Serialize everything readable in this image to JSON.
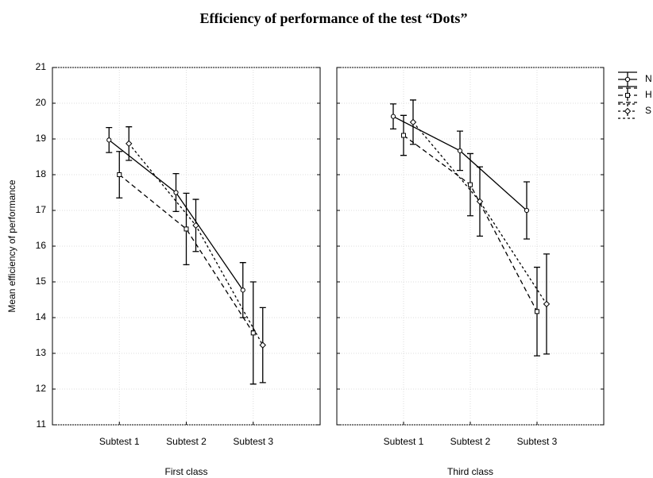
{
  "title": "Efficiency of performance of the test “Dots”",
  "legend": [
    {
      "name": "N",
      "dash": "none",
      "marker": "circle"
    },
    {
      "name": "H",
      "dash": "6,4",
      "marker": "square"
    },
    {
      "name": "S",
      "dash": "3,3",
      "marker": "diamond"
    }
  ],
  "chart_data": [
    {
      "type": "line",
      "xlabel": "First class",
      "ylabel": "Mean efficiency of performance",
      "categories": [
        "Subtest 1",
        "Subtest 2",
        "Subtest 3"
      ],
      "ylim": [
        11,
        21
      ],
      "yticks": [
        11,
        12,
        13,
        14,
        15,
        16,
        17,
        18,
        19,
        20,
        21
      ],
      "grid": true,
      "series": [
        {
          "values": [
            18.97,
            17.5,
            14.77
          ],
          "errors": [
            0.35,
            0.53,
            0.77
          ]
        },
        {
          "values": [
            18.0,
            16.48,
            13.57
          ],
          "errors": [
            0.65,
            1.0,
            1.43
          ]
        },
        {
          "values": [
            18.87,
            16.58,
            13.23
          ],
          "errors": [
            0.47,
            0.73,
            1.05
          ]
        }
      ]
    },
    {
      "type": "line",
      "xlabel": "Third class",
      "categories": [
        "Subtest 1",
        "Subtest 2",
        "Subtest 3"
      ],
      "ylim": [
        11,
        21
      ],
      "yticks": [
        11,
        12,
        13,
        14,
        15,
        16,
        17,
        18,
        19,
        20,
        21
      ],
      "grid": true,
      "series": [
        {
          "values": [
            19.63,
            18.67,
            17.0
          ],
          "errors": [
            0.35,
            0.55,
            0.8
          ]
        },
        {
          "values": [
            19.1,
            17.72,
            14.17
          ],
          "errors": [
            0.56,
            0.87,
            1.24
          ]
        },
        {
          "values": [
            19.47,
            17.25,
            14.38
          ],
          "errors": [
            0.62,
            0.97,
            1.4
          ]
        }
      ]
    }
  ]
}
